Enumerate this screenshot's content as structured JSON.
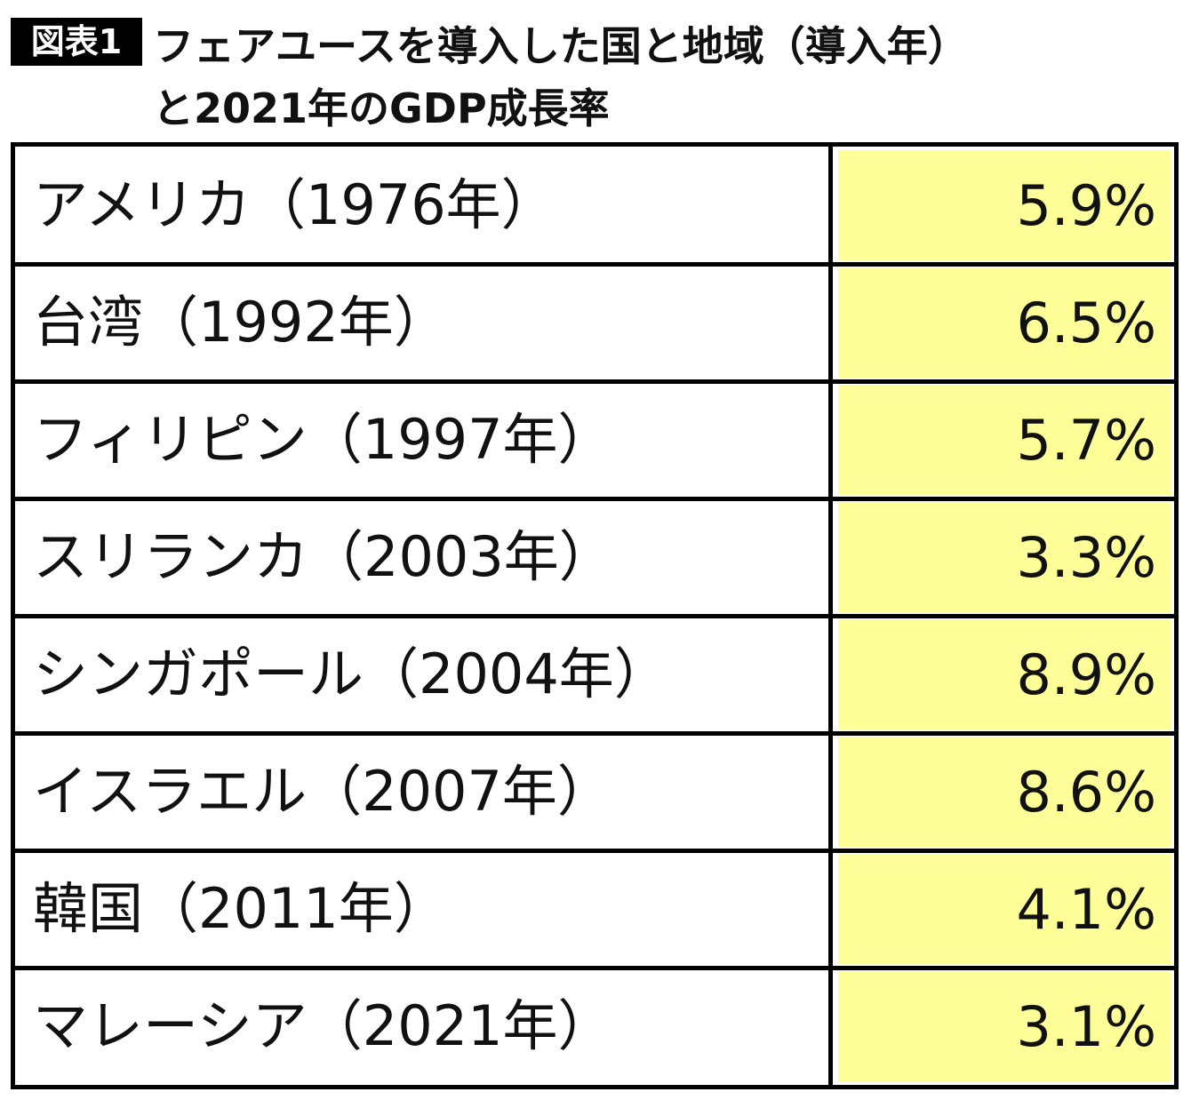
{
  "header": {
    "label": "図表1",
    "title_lines": [
      "フェアユースを導入した国と地域（導入年）",
      "と2021年のGDP成長率"
    ]
  },
  "table": {
    "rows": [
      [
        "アメリカ（1976年）",
        "5.9%"
      ],
      [
        "台湾（1992年）",
        "6.5%"
      ],
      [
        "フィリピン（1997年）",
        "5.7%"
      ],
      [
        "スリランカ（2003年）",
        "3.3%"
      ],
      [
        "シンガポール（2004年）",
        "8.9%"
      ],
      [
        "イスラエル（2007年）",
        "8.6%"
      ],
      [
        "韓国（2011年）",
        "4.1%"
      ],
      [
        "マレーシア（2021年）",
        "3.1%"
      ]
    ]
  }
}
